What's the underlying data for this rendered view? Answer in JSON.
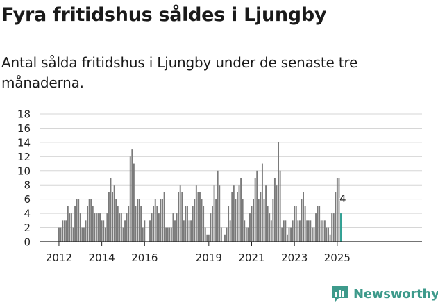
{
  "title": "Fyra fritidshus såldes i Ljungby",
  "subtitle": "Antal sålda fritidshus i Ljungby under de senaste tre månaderna.",
  "brand": {
    "name": "Newsworthy",
    "icon": "bar-chart-icon",
    "color": "#3d9a8b"
  },
  "colors": {
    "bar": "#7a7a7a",
    "highlight": "#2a9d8f",
    "grid": "#d6d6d6"
  },
  "chart_data": {
    "type": "bar",
    "title": "Fyra fritidshus såldes i Ljungby",
    "xlabel": "",
    "ylabel": "",
    "ylim": [
      0,
      18
    ],
    "y_ticks": [
      "0",
      "2",
      "4",
      "6",
      "8",
      "10",
      "12",
      "14",
      "16",
      "18"
    ],
    "x_ticks": [
      "2012",
      "2014",
      "2016",
      "2019",
      "2021",
      "2023",
      "2025"
    ],
    "grid": true,
    "start_period": "2012-01",
    "frequency": "monthly",
    "highlight_label": "4",
    "values": [
      2,
      2,
      3,
      3,
      3,
      5,
      4,
      4,
      2,
      5,
      6,
      6,
      4,
      2,
      2,
      3,
      5,
      6,
      6,
      5,
      4,
      4,
      4,
      4,
      3,
      3,
      2,
      4,
      7,
      9,
      7,
      8,
      6,
      5,
      4,
      4,
      2,
      3,
      4,
      5,
      12,
      13,
      11,
      5,
      6,
      6,
      5,
      2,
      3,
      0,
      0,
      3,
      4,
      5,
      6,
      5,
      4,
      6,
      6,
      7,
      2,
      2,
      2,
      2,
      4,
      3,
      4,
      7,
      8,
      7,
      3,
      5,
      5,
      3,
      3,
      5,
      6,
      8,
      7,
      7,
      6,
      5,
      2,
      1,
      1,
      4,
      5,
      8,
      6,
      10,
      8,
      2,
      0,
      1,
      2,
      5,
      3,
      7,
      8,
      6,
      7,
      8,
      9,
      6,
      3,
      2,
      2,
      4,
      5,
      6,
      9,
      10,
      6,
      7,
      11,
      6,
      8,
      5,
      4,
      3,
      6,
      9,
      8,
      14,
      10,
      2,
      3,
      3,
      1,
      2,
      2,
      3,
      5,
      5,
      3,
      3,
      6,
      7,
      5,
      3,
      3,
      3,
      2,
      2,
      4,
      5,
      5,
      3,
      3,
      3,
      2,
      2,
      1,
      4,
      4,
      7,
      9,
      9,
      4
    ]
  }
}
